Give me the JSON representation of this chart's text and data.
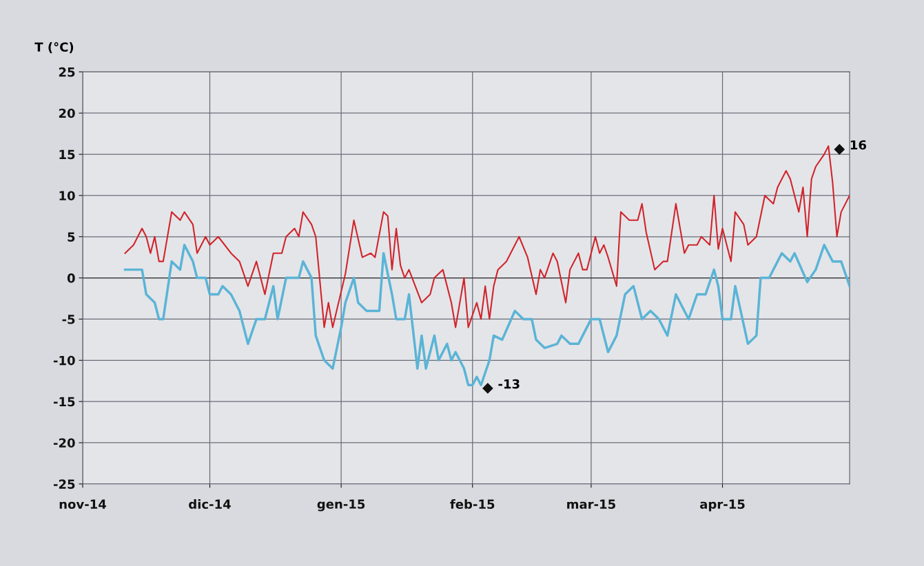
{
  "chart_data": {
    "type": "line",
    "ylabel": "T (°C)",
    "xlim": [
      "2014-11-01",
      "2015-05-01"
    ],
    "ylim": [
      -25,
      25
    ],
    "yticks": [
      -25,
      -20,
      -15,
      -10,
      -5,
      0,
      5,
      10,
      15,
      20,
      25
    ],
    "xticks": [
      {
        "value": "2014-11-01",
        "label": "nov-14"
      },
      {
        "value": "2014-12-01",
        "label": "dic-14"
      },
      {
        "value": "2015-01-01",
        "label": "gen-15"
      },
      {
        "value": "2015-02-01",
        "label": "feb-15"
      },
      {
        "value": "2015-03-01",
        "label": "mar-15"
      },
      {
        "value": "2015-04-01",
        "label": "apr-15"
      }
    ],
    "grid": true,
    "marker": "none",
    "line_style": "solid",
    "series": [
      {
        "color": "#d0242a",
        "x": [
          "2014-11-11",
          "2014-11-13",
          "2014-11-15",
          "2014-11-16",
          "2014-11-17",
          "2014-11-18",
          "2014-11-19",
          "2014-11-20",
          "2014-11-22",
          "2014-11-24",
          "2014-11-25",
          "2014-11-27",
          "2014-11-28",
          "2014-11-30",
          "2014-12-01",
          "2014-12-03",
          "2014-12-06",
          "2014-12-08",
          "2014-12-10",
          "2014-12-12",
          "2014-12-14",
          "2014-12-16",
          "2014-12-18",
          "2014-12-19",
          "2014-12-21",
          "2014-12-22",
          "2014-12-23",
          "2014-12-25",
          "2014-12-26",
          "2014-12-28",
          "2014-12-29",
          "2014-12-30",
          "2015-01-02",
          "2015-01-04",
          "2015-01-06",
          "2015-01-08",
          "2015-01-09",
          "2015-01-11",
          "2015-01-12",
          "2015-01-13",
          "2015-01-14",
          "2015-01-15",
          "2015-01-16",
          "2015-01-17",
          "2015-01-20",
          "2015-01-22",
          "2015-01-23",
          "2015-01-25",
          "2015-01-27",
          "2015-01-28",
          "2015-01-30",
          "2015-01-31",
          "2015-02-02",
          "2015-02-03",
          "2015-02-04",
          "2015-02-05",
          "2015-02-06",
          "2015-02-07",
          "2015-02-09",
          "2015-02-12",
          "2015-02-14",
          "2015-02-16",
          "2015-02-17",
          "2015-02-18",
          "2015-02-20",
          "2015-02-21",
          "2015-02-23",
          "2015-02-24",
          "2015-02-26",
          "2015-02-27",
          "2015-02-28",
          "2015-03-02",
          "2015-03-03",
          "2015-03-04",
          "2015-03-05",
          "2015-03-07",
          "2015-03-08",
          "2015-03-10",
          "2015-03-12",
          "2015-03-13",
          "2015-03-14",
          "2015-03-16",
          "2015-03-18",
          "2015-03-19",
          "2015-03-21",
          "2015-03-23",
          "2015-03-24",
          "2015-03-26",
          "2015-03-27",
          "2015-03-29",
          "2015-03-30",
          "2015-03-31",
          "2015-04-01",
          "2015-04-03",
          "2015-04-04",
          "2015-04-06",
          "2015-04-07",
          "2015-04-09",
          "2015-04-11",
          "2015-04-13",
          "2015-04-14",
          "2015-04-16",
          "2015-04-17",
          "2015-04-19",
          "2015-04-20",
          "2015-04-21",
          "2015-04-22",
          "2015-04-23",
          "2015-04-25",
          "2015-04-26",
          "2015-04-27",
          "2015-04-28",
          "2015-04-29",
          "2015-05-01"
        ],
        "values": [
          3,
          4,
          6,
          5,
          3,
          5,
          2,
          2,
          8,
          7,
          8,
          6.5,
          3,
          5,
          4,
          5,
          3,
          2,
          -1,
          2,
          -2,
          3,
          3,
          5,
          6,
          5,
          8,
          6.5,
          5,
          -6,
          -3,
          -6,
          0.5,
          7,
          2.5,
          3,
          2.5,
          8,
          7.5,
          1,
          6,
          1.5,
          0,
          1,
          -3,
          -2,
          0,
          1,
          -3,
          -6,
          0,
          -6,
          -3,
          -5,
          -1,
          -5,
          -1,
          1,
          2,
          5,
          2.5,
          -2,
          1,
          0,
          3,
          2,
          -3,
          1,
          3,
          1,
          1,
          5,
          3,
          4,
          2.5,
          -1,
          8,
          7,
          7,
          9,
          5.5,
          1,
          2,
          2,
          9,
          3,
          4,
          4,
          5,
          4,
          10,
          3.5,
          6,
          2,
          8,
          6.5,
          4,
          5,
          10,
          9,
          11,
          13,
          12,
          8,
          11,
          5,
          12,
          13.5,
          15,
          16,
          11.5,
          5,
          8,
          10
        ]
      },
      {
        "color": "#5ab4d6",
        "x": [
          "2014-11-11",
          "2014-11-15",
          "2014-11-16",
          "2014-11-18",
          "2014-11-19",
          "2014-11-20",
          "2014-11-22",
          "2014-11-24",
          "2014-11-25",
          "2014-11-27",
          "2014-11-28",
          "2014-11-30",
          "2014-12-01",
          "2014-12-03",
          "2014-12-04",
          "2014-12-06",
          "2014-12-08",
          "2014-12-10",
          "2014-12-12",
          "2014-12-14",
          "2014-12-16",
          "2014-12-17",
          "2014-12-19",
          "2014-12-22",
          "2014-12-23",
          "2014-12-25",
          "2014-12-26",
          "2014-12-28",
          "2014-12-30",
          "2015-01-01",
          "2015-01-02",
          "2015-01-04",
          "2015-01-05",
          "2015-01-07",
          "2015-01-10",
          "2015-01-11",
          "2015-01-13",
          "2015-01-14",
          "2015-01-16",
          "2015-01-17",
          "2015-01-19",
          "2015-01-20",
          "2015-01-21",
          "2015-01-23",
          "2015-01-24",
          "2015-01-26",
          "2015-01-27",
          "2015-01-28",
          "2015-01-30",
          "2015-01-31",
          "2015-02-01",
          "2015-02-02",
          "2015-02-03",
          "2015-02-05",
          "2015-02-06",
          "2015-02-08",
          "2015-02-11",
          "2015-02-13",
          "2015-02-15",
          "2015-02-16",
          "2015-02-18",
          "2015-02-21",
          "2015-02-22",
          "2015-02-24",
          "2015-02-26",
          "2015-02-28",
          "2015-03-01",
          "2015-03-03",
          "2015-03-05",
          "2015-03-07",
          "2015-03-09",
          "2015-03-11",
          "2015-03-13",
          "2015-03-15",
          "2015-03-17",
          "2015-03-19",
          "2015-03-21",
          "2015-03-22",
          "2015-03-24",
          "2015-03-26",
          "2015-03-28",
          "2015-03-30",
          "2015-03-31",
          "2015-04-01",
          "2015-04-03",
          "2015-04-04",
          "2015-04-07",
          "2015-04-09",
          "2015-04-10",
          "2015-04-12",
          "2015-04-15",
          "2015-04-17",
          "2015-04-18",
          "2015-04-21",
          "2015-04-23",
          "2015-04-25",
          "2015-04-27",
          "2015-04-29",
          "2015-05-01"
        ],
        "values": [
          1,
          1,
          -2,
          -3,
          -5,
          -5,
          2,
          1,
          4,
          2,
          0,
          0,
          -2,
          -2,
          -1,
          -2,
          -4,
          -8,
          -5,
          -5,
          -1,
          -5,
          0,
          0,
          2,
          0,
          -7,
          -10,
          -11,
          -6,
          -3,
          0,
          -3,
          -4,
          -4,
          3,
          -2,
          -5,
          -5,
          -2,
          -11,
          -7,
          -11,
          -7,
          -10,
          -8,
          -10,
          -9,
          -11,
          -13,
          -13,
          -12,
          -13,
          -10,
          -7,
          -7.5,
          -4,
          -5,
          -5,
          -7.5,
          -8.5,
          -8,
          -7,
          -8,
          -8,
          -6,
          -5,
          -5,
          -9,
          -7,
          -2,
          -1,
          -5,
          -4,
          -5,
          -7,
          -2,
          -3,
          -5,
          -2,
          -2,
          1,
          -1,
          -5,
          -5,
          -1,
          -8,
          -7,
          0,
          0,
          3,
          2,
          3,
          -0.5,
          1,
          4,
          2,
          2,
          -1
        ]
      }
    ],
    "annotations": [
      {
        "text": "16",
        "x": "2015-04-26",
        "y": 16
      },
      {
        "text": "-13",
        "x": "2015-02-02",
        "y": -13
      }
    ]
  }
}
